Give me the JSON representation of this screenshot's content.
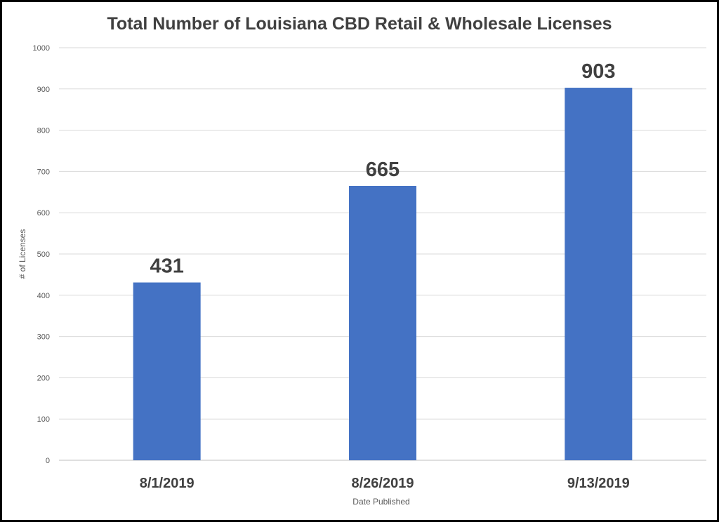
{
  "chart_data": {
    "type": "bar",
    "title": "Total Number of Louisiana CBD Retail & Wholesale Licenses",
    "xlabel": "Date Published",
    "ylabel": "# of Licenses",
    "categories": [
      "8/1/2019",
      "8/26/2019",
      "9/13/2019"
    ],
    "values": [
      431,
      665,
      903
    ],
    "data_labels": [
      "431",
      "665",
      "903"
    ],
    "ylim": [
      0,
      1000
    ],
    "yticks": [
      0,
      100,
      200,
      300,
      400,
      500,
      600,
      700,
      800,
      900,
      1000
    ],
    "grid": true,
    "legend": "none",
    "colors": {
      "bar": "#4472C4",
      "grid": "#D9D9D9",
      "axis": "#BFBFBF"
    }
  }
}
